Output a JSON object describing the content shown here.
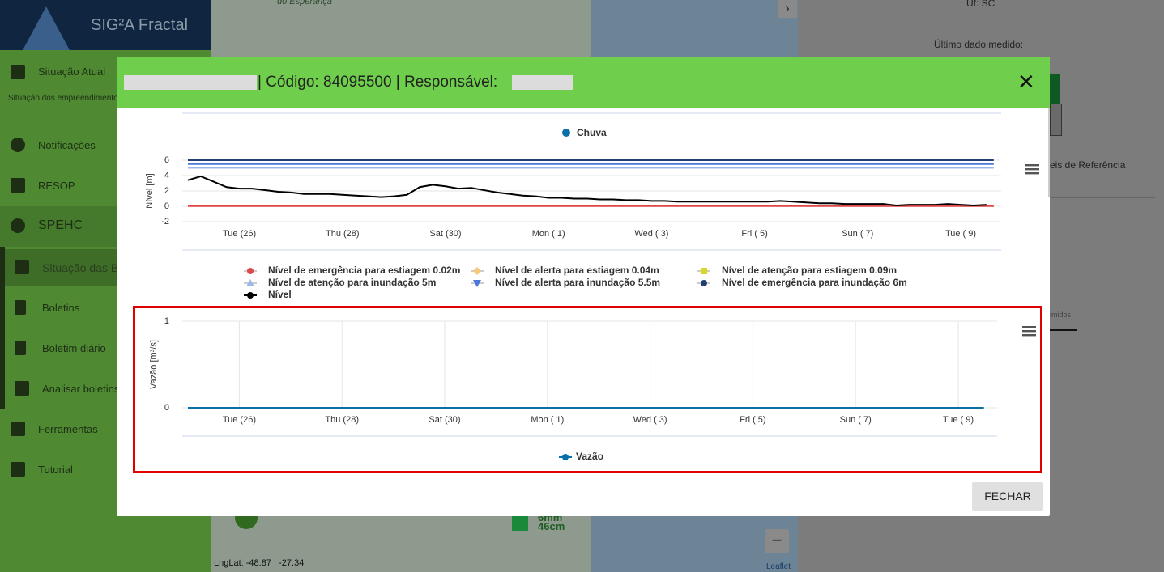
{
  "sidebar": {
    "app_name": "SIG²A Fractal",
    "items": [
      "Situação Atual",
      "Situação dos empreendimento",
      "Notificações",
      "RESOP",
      "SPEHC",
      "Situação das B",
      "Boletins",
      "Boletim diário",
      "Analisar boletins",
      "Ferramentas",
      "Tutorial"
    ]
  },
  "map": {
    "place": "do Esperança",
    "marker_rain": "6mm",
    "marker_level": "46cm",
    "coords": "LngLat: -48.87 : -27.34",
    "attribution": "Leaflet"
  },
  "right_panel": {
    "uf": "Uf: SC",
    "last_label": "Último dado medido:",
    "ref": "eis de Referência",
    "partial": "imidos"
  },
  "modal": {
    "title": "| Código: 84095500 | Responsável:",
    "close_button": "FECHAR",
    "rain_legend": {
      "name": "Chuva",
      "color": "#0a6ea8"
    },
    "charts": [
      {
        "type": "line",
        "y_label": "Nível [m]",
        "ylim": [
          -2,
          6
        ],
        "yticks": [
          -2,
          0,
          2,
          4,
          6
        ],
        "categories": [
          null,
          null,
          null,
          null,
          "Tue (26)",
          null,
          null,
          null,
          null,
          null,
          null,
          null,
          "Thu (28)",
          null,
          null,
          null,
          null,
          null,
          null,
          null,
          "Sat (30)",
          null,
          null,
          null,
          null,
          null,
          null,
          null,
          "Mon ( 1)",
          null,
          null,
          null,
          null,
          null,
          null,
          null,
          "Wed ( 3)",
          null,
          null,
          null,
          null,
          null,
          null,
          null,
          "Fri ( 5)",
          null,
          null,
          null,
          null,
          null,
          null,
          null,
          "Sun ( 7)",
          null,
          null,
          null,
          null,
          null,
          null,
          null,
          "Tue ( 9)",
          null,
          null
        ],
        "thresholds": [
          {
            "name": "Nível de emergência para inundação 6m",
            "color": "#253f74",
            "value": 6,
            "marker": "circle"
          },
          {
            "name": "Nível de alerta para inundação 5.5m",
            "color": "#4a78d8",
            "value": 5.5,
            "marker": "tri-down"
          },
          {
            "name": "Nível de atenção para inundação 5m",
            "color": "#9cb8e8",
            "value": 5,
            "marker": "tri-up"
          },
          {
            "name": "Nível de atenção para estiagem 0.09m",
            "color": "#d8d82a",
            "value": 0.09,
            "marker": "square"
          },
          {
            "name": "Nível de alerta para estiagem 0.04m",
            "color": "#f7c77a",
            "value": 0.04,
            "marker": "diamond"
          },
          {
            "name": "Nível de emergência para estiagem 0.02m",
            "color": "#e0474c",
            "value": 0.02,
            "marker": "circle"
          }
        ],
        "series": [
          {
            "name": "Nível",
            "color": "#000000",
            "values": [
              3.4,
              3.9,
              3.2,
              2.5,
              2.3,
              2.3,
              2.1,
              1.9,
              1.8,
              1.6,
              1.6,
              1.6,
              1.5,
              1.4,
              1.3,
              1.2,
              1.3,
              1.5,
              2.5,
              2.8,
              2.6,
              2.3,
              2.4,
              2.1,
              1.8,
              1.6,
              1.4,
              1.3,
              1.1,
              1.1,
              1.0,
              1.0,
              0.9,
              0.9,
              0.8,
              0.8,
              0.7,
              0.7,
              0.6,
              0.6,
              0.6,
              0.6,
              0.6,
              0.6,
              0.6,
              0.6,
              0.7,
              0.6,
              0.5,
              0.4,
              0.4,
              0.3,
              0.3,
              0.3,
              0.3,
              0.1,
              0.2,
              0.2,
              0.2,
              0.3,
              0.2,
              0.1,
              0.2
            ]
          }
        ]
      },
      {
        "type": "line",
        "y_label": "Vazão [m³/s]",
        "ylim": [
          0,
          1
        ],
        "yticks": [
          0,
          1
        ],
        "categories": [
          null,
          null,
          null,
          null,
          "Tue (26)",
          null,
          null,
          null,
          null,
          null,
          null,
          null,
          "Thu (28)",
          null,
          null,
          null,
          null,
          null,
          null,
          null,
          "Sat (30)",
          null,
          null,
          null,
          null,
          null,
          null,
          null,
          "Mon ( 1)",
          null,
          null,
          null,
          null,
          null,
          null,
          null,
          "Wed ( 3)",
          null,
          null,
          null,
          null,
          null,
          null,
          null,
          "Fri ( 5)",
          null,
          null,
          null,
          null,
          null,
          null,
          null,
          "Sun ( 7)",
          null,
          null,
          null,
          null,
          null,
          null,
          null,
          "Tue ( 9)",
          null,
          null
        ],
        "series": [
          {
            "name": "Vazão",
            "color": "#0a6ea8",
            "values": [
              0,
              0,
              0,
              0,
              0,
              0,
              0,
              0,
              0,
              0,
              0,
              0,
              0,
              0,
              0,
              0,
              0,
              0,
              0,
              0,
              0,
              0,
              0,
              0,
              0,
              0,
              0,
              0,
              0,
              0,
              0,
              0,
              0,
              0,
              0,
              0,
              0,
              0,
              0,
              0,
              0,
              0,
              0,
              0,
              0,
              0,
              0,
              0,
              0,
              0,
              0,
              0,
              0,
              0,
              0,
              0,
              0,
              0,
              0,
              0,
              0,
              0,
              0
            ]
          }
        ]
      }
    ]
  }
}
